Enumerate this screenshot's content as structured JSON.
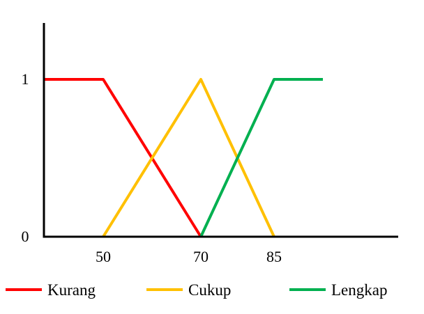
{
  "chart_data": {
    "type": "line",
    "title": "",
    "xlabel": "",
    "ylabel": "",
    "x_ticks": [
      50,
      70,
      85
    ],
    "y_ticks": [
      0,
      1
    ],
    "xlim": [
      40,
      95
    ],
    "ylim": [
      0,
      1.3
    ],
    "grid": false,
    "legend_position": "bottom",
    "series": [
      {
        "name": "Kurang",
        "color": "#ff0000",
        "points": [
          [
            40,
            1
          ],
          [
            50,
            1
          ],
          [
            70,
            0
          ]
        ]
      },
      {
        "name": "Cukup",
        "color": "#ffc000",
        "points": [
          [
            50,
            0
          ],
          [
            70,
            1
          ],
          [
            85,
            0
          ]
        ]
      },
      {
        "name": "Lengkap",
        "color": "#00b050",
        "points": [
          [
            70,
            0
          ],
          [
            85,
            1
          ],
          [
            95,
            1
          ]
        ]
      }
    ]
  }
}
